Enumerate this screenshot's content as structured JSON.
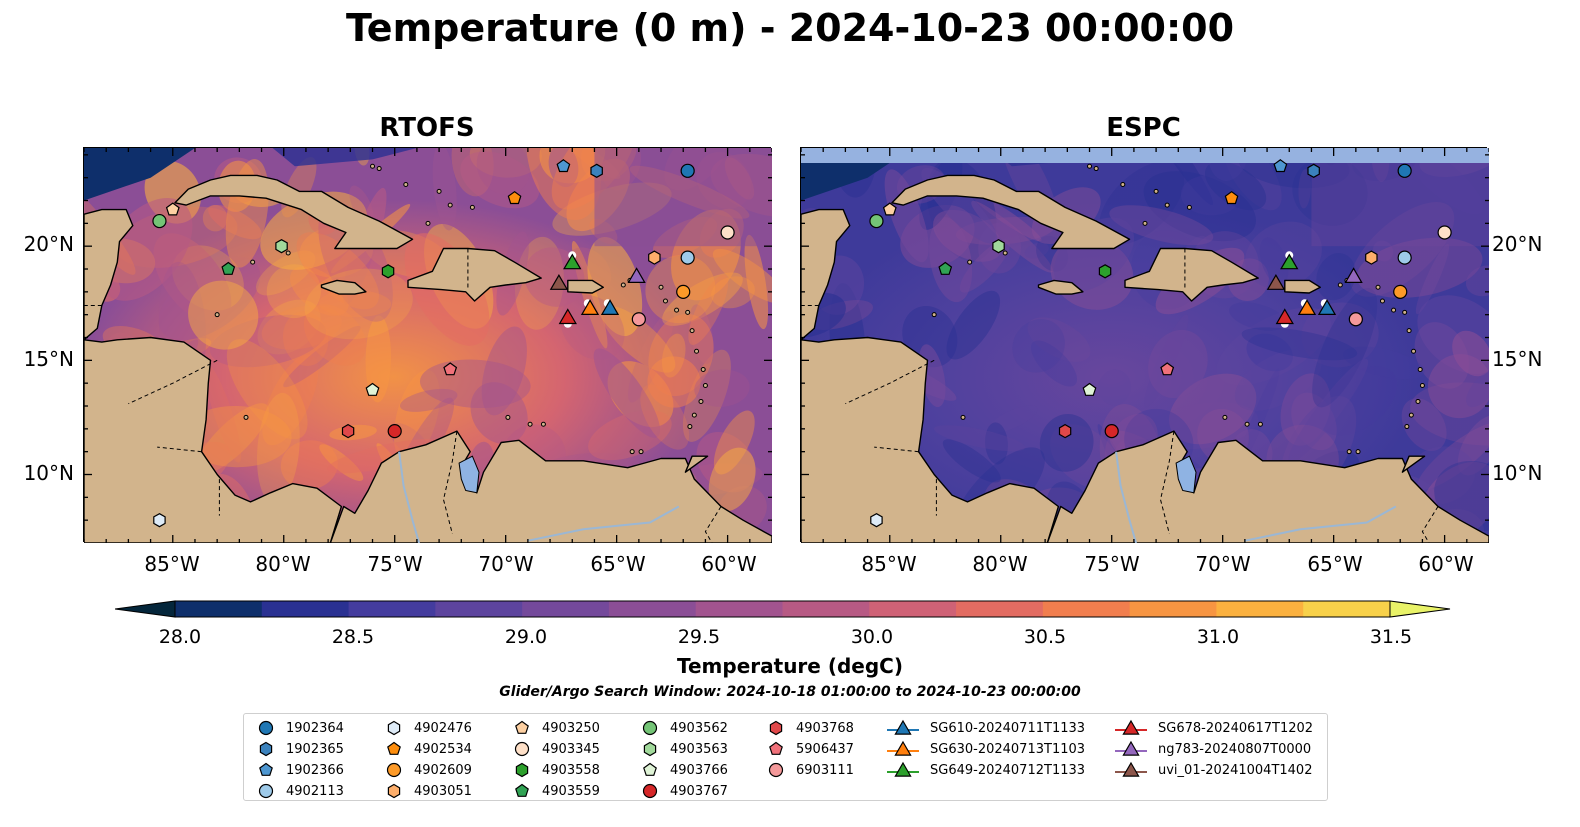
{
  "title": "Temperature (0 m) - 2024-10-23 00:00:00",
  "panels": [
    {
      "title": "RTOFS"
    },
    {
      "title": "ESPC"
    }
  ],
  "lon_ticks": [
    "85°W",
    "80°W",
    "75°W",
    "70°W",
    "65°W",
    "60°W"
  ],
  "lat_ticks": [
    "20°N",
    "15°N",
    "10°N"
  ],
  "colorbar": {
    "label": "Temperature (degC)",
    "ticks": [
      "28.0",
      "28.5",
      "29.0",
      "29.5",
      "30.0",
      "30.5",
      "31.0",
      "31.5"
    ],
    "min": 28.0,
    "max": 31.5,
    "colors": [
      "#04263b",
      "#0e2f6b",
      "#2a3192",
      "#443c9e",
      "#5d449e",
      "#74499b",
      "#8b4e96",
      "#a2548f",
      "#b75a84",
      "#cf6276",
      "#e36c62",
      "#f17e4e",
      "#f79542",
      "#fbb13f",
      "#f8d14a",
      "#e9f368"
    ]
  },
  "search_window": "Glider/Argo Search Window: 2024-10-18 01:00:00 to 2024-10-23 00:00:00",
  "legend": [
    {
      "label": "1902364",
      "marker": "circle",
      "color": "#1f77b4"
    },
    {
      "label": "1902365",
      "marker": "hexagon",
      "color": "#3b82bd"
    },
    {
      "label": "1902366",
      "marker": "pentagon",
      "color": "#4e97d1"
    },
    {
      "label": "4902113",
      "marker": "circle",
      "color": "#9ecae9"
    },
    {
      "label": "4902476",
      "marker": "hexagon",
      "color": "#deebf7"
    },
    {
      "label": "4902534",
      "marker": "pentagon",
      "color": "#fd8d0d"
    },
    {
      "label": "4902609",
      "marker": "circle",
      "color": "#fd9a28"
    },
    {
      "label": "4903051",
      "marker": "hexagon",
      "color": "#fdae6b"
    },
    {
      "label": "4903250",
      "marker": "pentagon",
      "color": "#fdd0a2"
    },
    {
      "label": "4903345",
      "marker": "circle",
      "color": "#fee0c8"
    },
    {
      "label": "4903558",
      "marker": "hexagon",
      "color": "#2ca02c"
    },
    {
      "label": "4903559",
      "marker": "pentagon",
      "color": "#31a354"
    },
    {
      "label": "4903562",
      "marker": "circle",
      "color": "#74c476"
    },
    {
      "label": "4903563",
      "marker": "hexagon",
      "color": "#a1d99b"
    },
    {
      "label": "4903766",
      "marker": "pentagon",
      "color": "#dff3d6"
    },
    {
      "label": "4903767",
      "marker": "circle",
      "color": "#d62728"
    },
    {
      "label": "4903768",
      "marker": "hexagon",
      "color": "#e0484a"
    },
    {
      "label": "5906437",
      "marker": "pentagon",
      "color": "#f0717a"
    },
    {
      "label": "6903111",
      "marker": "circle",
      "color": "#f4999a"
    },
    {
      "label": "SG610-20240711T1133",
      "marker": "triangle",
      "color": "#1f77b4"
    },
    {
      "label": "SG630-20240713T1103",
      "marker": "triangle",
      "color": "#ff7f0e"
    },
    {
      "label": "SG649-20240712T1133",
      "marker": "triangle",
      "color": "#2ca02c"
    },
    {
      "label": "SG678-20240617T1202",
      "marker": "triangle",
      "color": "#d62728"
    },
    {
      "label": "ng783-20240807T0000",
      "marker": "triangle",
      "color": "#9467bd"
    },
    {
      "label": "uvi_01-20241004T1402",
      "marker": "triangle",
      "color": "#8c564b"
    }
  ],
  "floats": [
    {
      "id": "1902364",
      "lon": -61.8,
      "lat": 23.3
    },
    {
      "id": "1902365",
      "lon": -65.9,
      "lat": 23.3
    },
    {
      "id": "1902366",
      "lon": -67.4,
      "lat": 23.5
    },
    {
      "id": "4902113",
      "lon": -61.8,
      "lat": 19.5
    },
    {
      "id": "4902476",
      "lon": -85.6,
      "lat": 8.0
    },
    {
      "id": "4902534",
      "lon": -69.6,
      "lat": 22.1
    },
    {
      "id": "4902609",
      "lon": -62.0,
      "lat": 18.0
    },
    {
      "id": "4903051",
      "lon": -63.3,
      "lat": 19.5
    },
    {
      "id": "4903250",
      "lon": -85.0,
      "lat": 21.6
    },
    {
      "id": "4903345",
      "lon": -60.0,
      "lat": 20.6
    },
    {
      "id": "4903558",
      "lon": -75.3,
      "lat": 18.9
    },
    {
      "id": "4903559",
      "lon": -82.5,
      "lat": 19.0
    },
    {
      "id": "4903562",
      "lon": -85.6,
      "lat": 21.1
    },
    {
      "id": "4903563",
      "lon": -80.1,
      "lat": 20.0
    },
    {
      "id": "4903766",
      "lon": -76.0,
      "lat": 13.7
    },
    {
      "id": "4903767",
      "lon": -75.0,
      "lat": 11.9
    },
    {
      "id": "4903768",
      "lon": -77.1,
      "lat": 11.9
    },
    {
      "id": "5906437",
      "lon": -72.5,
      "lat": 14.6
    },
    {
      "id": "6903111",
      "lon": -64.0,
      "lat": 16.8
    }
  ],
  "gliders": [
    {
      "id": "SG610-20240711T1133",
      "lon": -65.3,
      "lat": 17.3
    },
    {
      "id": "SG630-20240713T1103",
      "lon": -66.2,
      "lat": 17.3
    },
    {
      "id": "SG649-20240712T1133",
      "lon": -67.0,
      "lat": 19.3
    },
    {
      "id": "SG678-20240617T1202",
      "lon": -67.2,
      "lat": 16.9
    },
    {
      "id": "ng783-20240807T0000",
      "lon": -64.1,
      "lat": 18.7
    },
    {
      "id": "uvi_01-20241004T1402",
      "lon": -67.6,
      "lat": 18.4
    }
  ]
}
